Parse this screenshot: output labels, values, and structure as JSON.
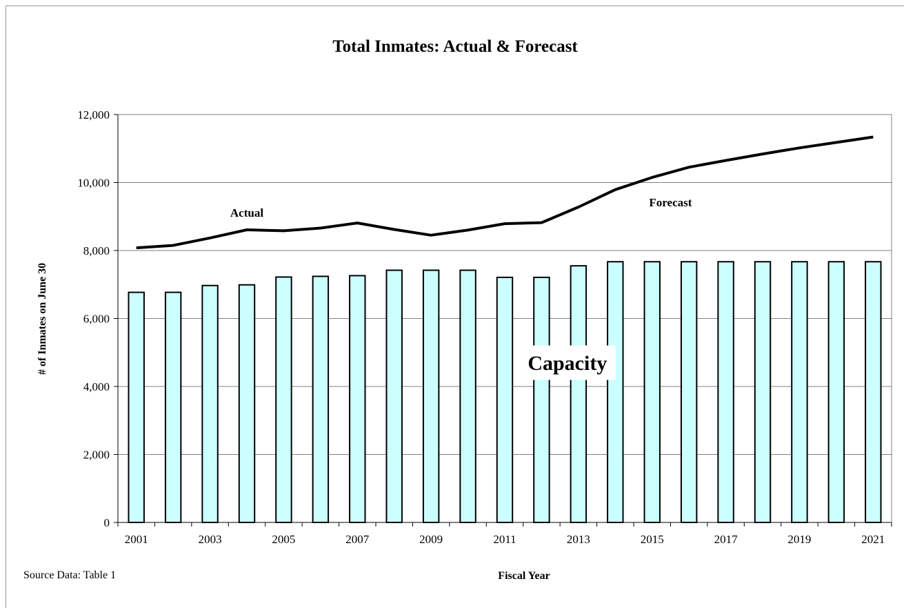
{
  "chart_data": {
    "type": "bar",
    "title": "Total Inmates: Actual & Forecast",
    "xlabel": "Fiscal Year",
    "ylabel": "# of Inmates on June 30",
    "source_note": "Source Data: Table 1",
    "ylim": [
      0,
      12000
    ],
    "y_ticks": [
      "0",
      "2,000",
      "4,000",
      "6,000",
      "8,000",
      "10,000",
      "12,000"
    ],
    "y_tick_values": [
      0,
      2000,
      4000,
      6000,
      8000,
      10000,
      12000
    ],
    "grid": true,
    "categories": [
      "2001",
      "2002",
      "2003",
      "2004",
      "2005",
      "2006",
      "2007",
      "2008",
      "2009",
      "2010",
      "2011",
      "2012",
      "2013",
      "2014",
      "2015",
      "2016",
      "2017",
      "2018",
      "2019",
      "2020",
      "2021"
    ],
    "x_tick_labels": [
      "2001",
      "",
      "2003",
      "",
      "2005",
      "",
      "2007",
      "",
      "2009",
      "",
      "2011",
      "",
      "2013",
      "",
      "2015",
      "",
      "2017",
      "",
      "2019",
      "",
      "2021"
    ],
    "series": [
      {
        "type": "bar",
        "values": [
          6770,
          6770,
          6970,
          6990,
          7220,
          7240,
          7260,
          7420,
          7420,
          7420,
          7210,
          7210,
          7550,
          7670,
          7670,
          7670,
          7670,
          7670,
          7670,
          7670,
          7670
        ],
        "fill": "#ccffff",
        "stroke": "#000000"
      },
      {
        "type": "line",
        "values": [
          8080,
          8150,
          8370,
          8610,
          8580,
          8660,
          8810,
          8620,
          8450,
          8600,
          8790,
          8820,
          9280,
          9790,
          10150,
          10450,
          10650,
          10840,
          11020,
          11180,
          11340
        ],
        "stroke": "#000000"
      }
    ],
    "annotations": [
      {
        "text": "Actual",
        "x": "2004",
        "y": 9120
      },
      {
        "text": "Forecast",
        "x": "2015",
        "y": 9420
      },
      {
        "text": "Capacity",
        "x": "2012",
        "y": 4700
      }
    ]
  }
}
